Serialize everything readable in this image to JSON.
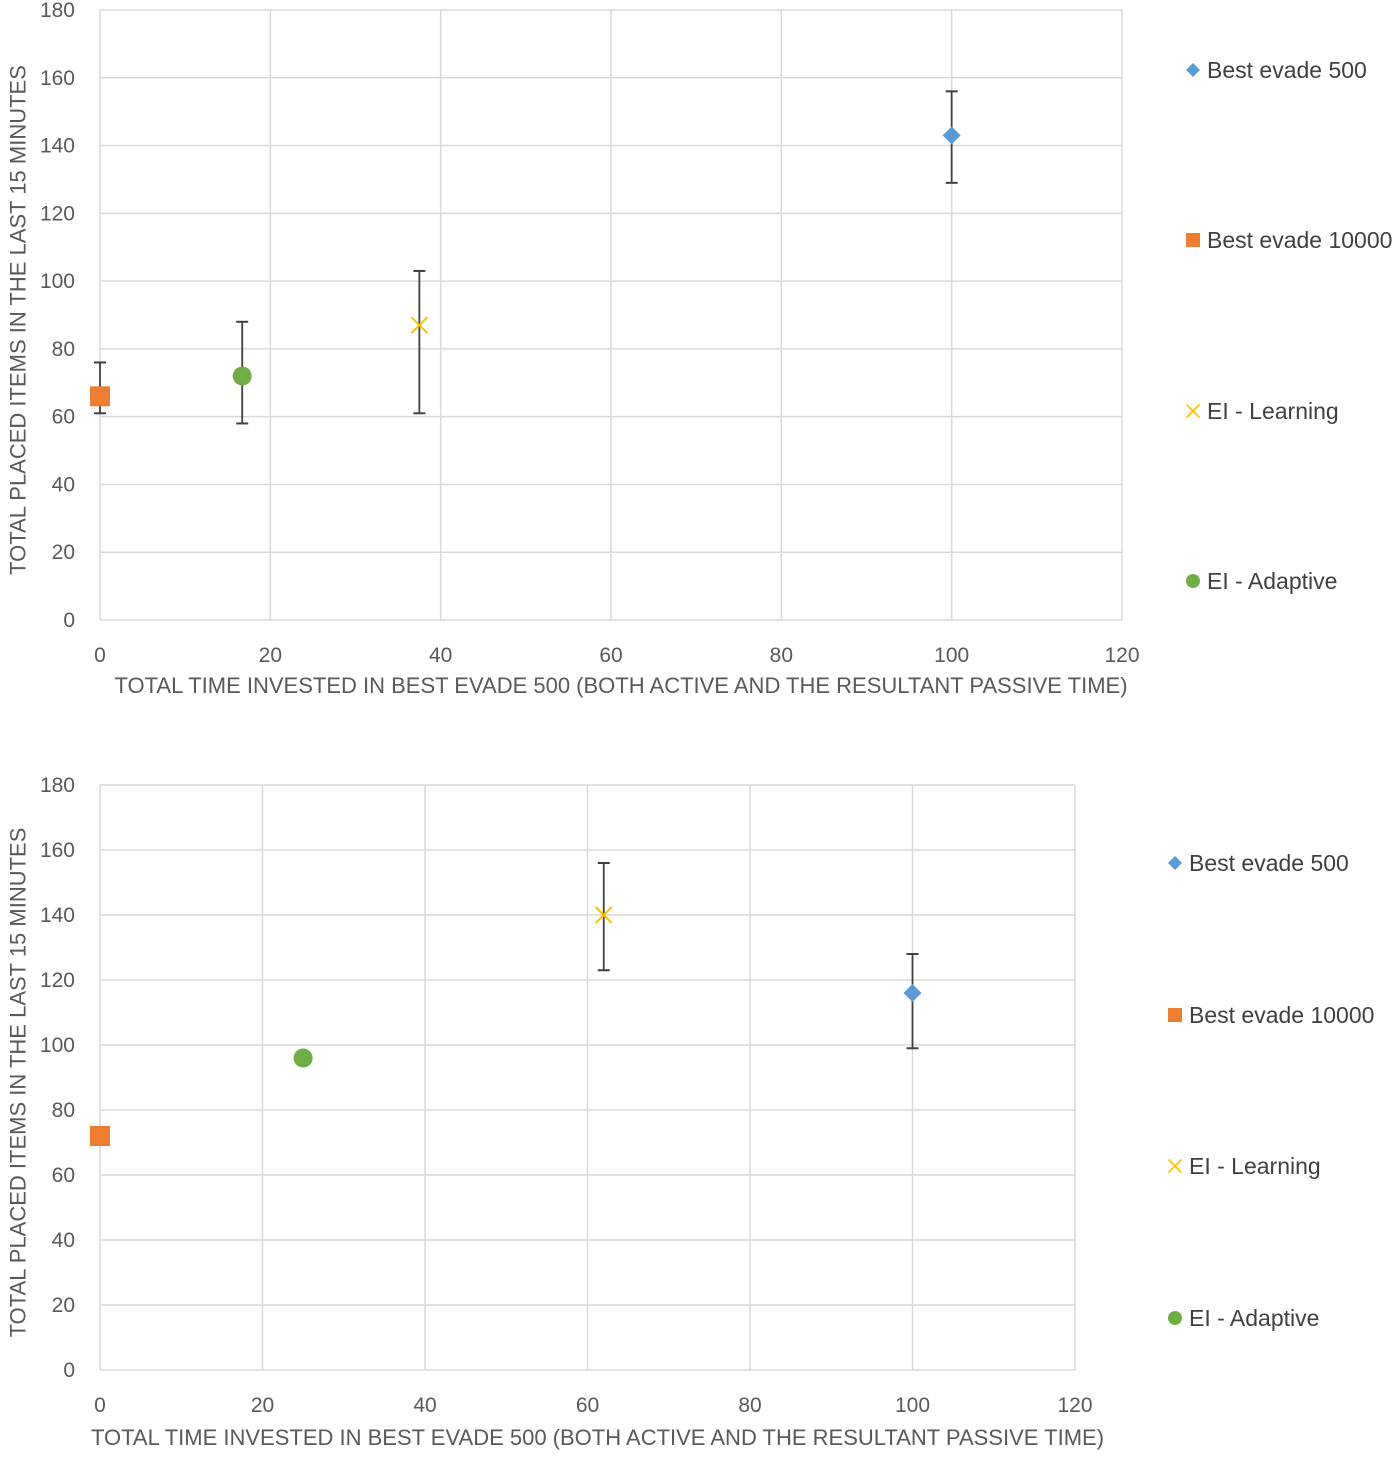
{
  "chart_data": [
    {
      "type": "scatter",
      "title": "",
      "xlabel": "TOTAL TIME INVESTED IN BEST EVADE 500 (BOTH ACTIVE AND THE RESULTANT PASSIVE TIME)",
      "ylabel": "TOTAL PLACED ITEMS IN THE LAST 15 MINUTES",
      "xlim": [
        0,
        120
      ],
      "ylim": [
        0,
        180
      ],
      "xticks": [
        0,
        20,
        40,
        60,
        80,
        100,
        120
      ],
      "yticks": [
        0,
        20,
        40,
        60,
        80,
        100,
        120,
        140,
        160,
        180
      ],
      "grid": true,
      "legend_position": "right",
      "series": [
        {
          "name": "Best evade 500",
          "marker": "diamond",
          "color": "#5B9BD5",
          "points": [
            {
              "x": 100,
              "y": 143,
              "err_low": 129,
              "err_high": 156
            }
          ]
        },
        {
          "name": "Best evade 10000",
          "marker": "square",
          "color": "#ED7D31",
          "points": [
            {
              "x": 0,
              "y": 66,
              "err_low": 61,
              "err_high": 76
            }
          ]
        },
        {
          "name": "EI - Learning",
          "marker": "x",
          "color": "#FFC000",
          "points": [
            {
              "x": 37.5,
              "y": 87,
              "err_low": 61,
              "err_high": 103
            }
          ]
        },
        {
          "name": "EI - Adaptive",
          "marker": "circle",
          "color": "#70AD47",
          "points": [
            {
              "x": 16.7,
              "y": 72,
              "err_low": 58,
              "err_high": 88
            }
          ]
        }
      ]
    },
    {
      "type": "scatter",
      "title": "",
      "xlabel": "TOTAL TIME INVESTED IN BEST EVADE 500 (BOTH ACTIVE AND THE RESULTANT PASSIVE TIME)",
      "ylabel": "TOTAL PLACED ITEMS IN THE LAST 15 MINUTES",
      "xlim": [
        0,
        120
      ],
      "ylim": [
        0,
        180
      ],
      "xticks": [
        0,
        20,
        40,
        60,
        80,
        100,
        120
      ],
      "yticks": [
        0,
        20,
        40,
        60,
        80,
        100,
        120,
        140,
        160,
        180
      ],
      "grid": true,
      "legend_position": "right",
      "series": [
        {
          "name": "Best evade 500",
          "marker": "diamond",
          "color": "#5B9BD5",
          "points": [
            {
              "x": 100,
              "y": 116,
              "err_low": 99,
              "err_high": 128
            }
          ]
        },
        {
          "name": "Best evade 10000",
          "marker": "square",
          "color": "#ED7D31",
          "points": [
            {
              "x": 0,
              "y": 72
            }
          ]
        },
        {
          "name": "EI - Learning",
          "marker": "x",
          "color": "#FFC000",
          "points": [
            {
              "x": 62,
              "y": 140,
              "err_low": 123,
              "err_high": 156
            }
          ]
        },
        {
          "name": "EI - Adaptive",
          "marker": "circle",
          "color": "#70AD47",
          "points": [
            {
              "x": 25,
              "y": 96
            }
          ]
        }
      ]
    }
  ]
}
